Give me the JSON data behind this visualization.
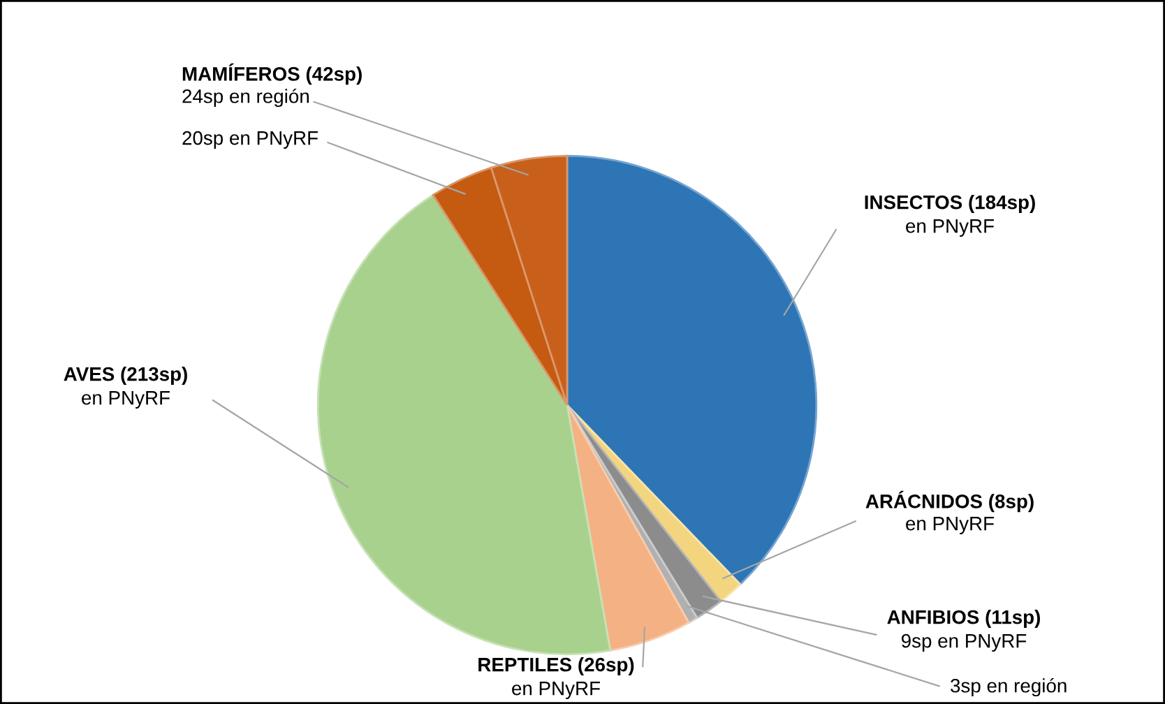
{
  "chart_data": {
    "type": "pie",
    "categories": [
      "INSECTOS (184sp)\nen PNyRF",
      "ARÁCNIDOS (8sp)\nen PNyRF",
      "ANFIBIOS (11sp)\n9sp en PNyRF",
      "3sp en región",
      "REPTILES (26sp)\nen PNyRF",
      "AVES (213sp)\nen PNyRF",
      "20sp en PNyRF",
      "MAMÍFEROS (42sp)\n24sp en región"
    ],
    "values": [
      184,
      8,
      9,
      3,
      26,
      213,
      20,
      24
    ],
    "colors": [
      "#2e75b6",
      "#f2d57e",
      "#8c8c8c",
      "#b0b0b0",
      "#f4b183",
      "#a9d18e",
      "#c55a11",
      "#c8601c"
    ],
    "legend": false
  }
}
